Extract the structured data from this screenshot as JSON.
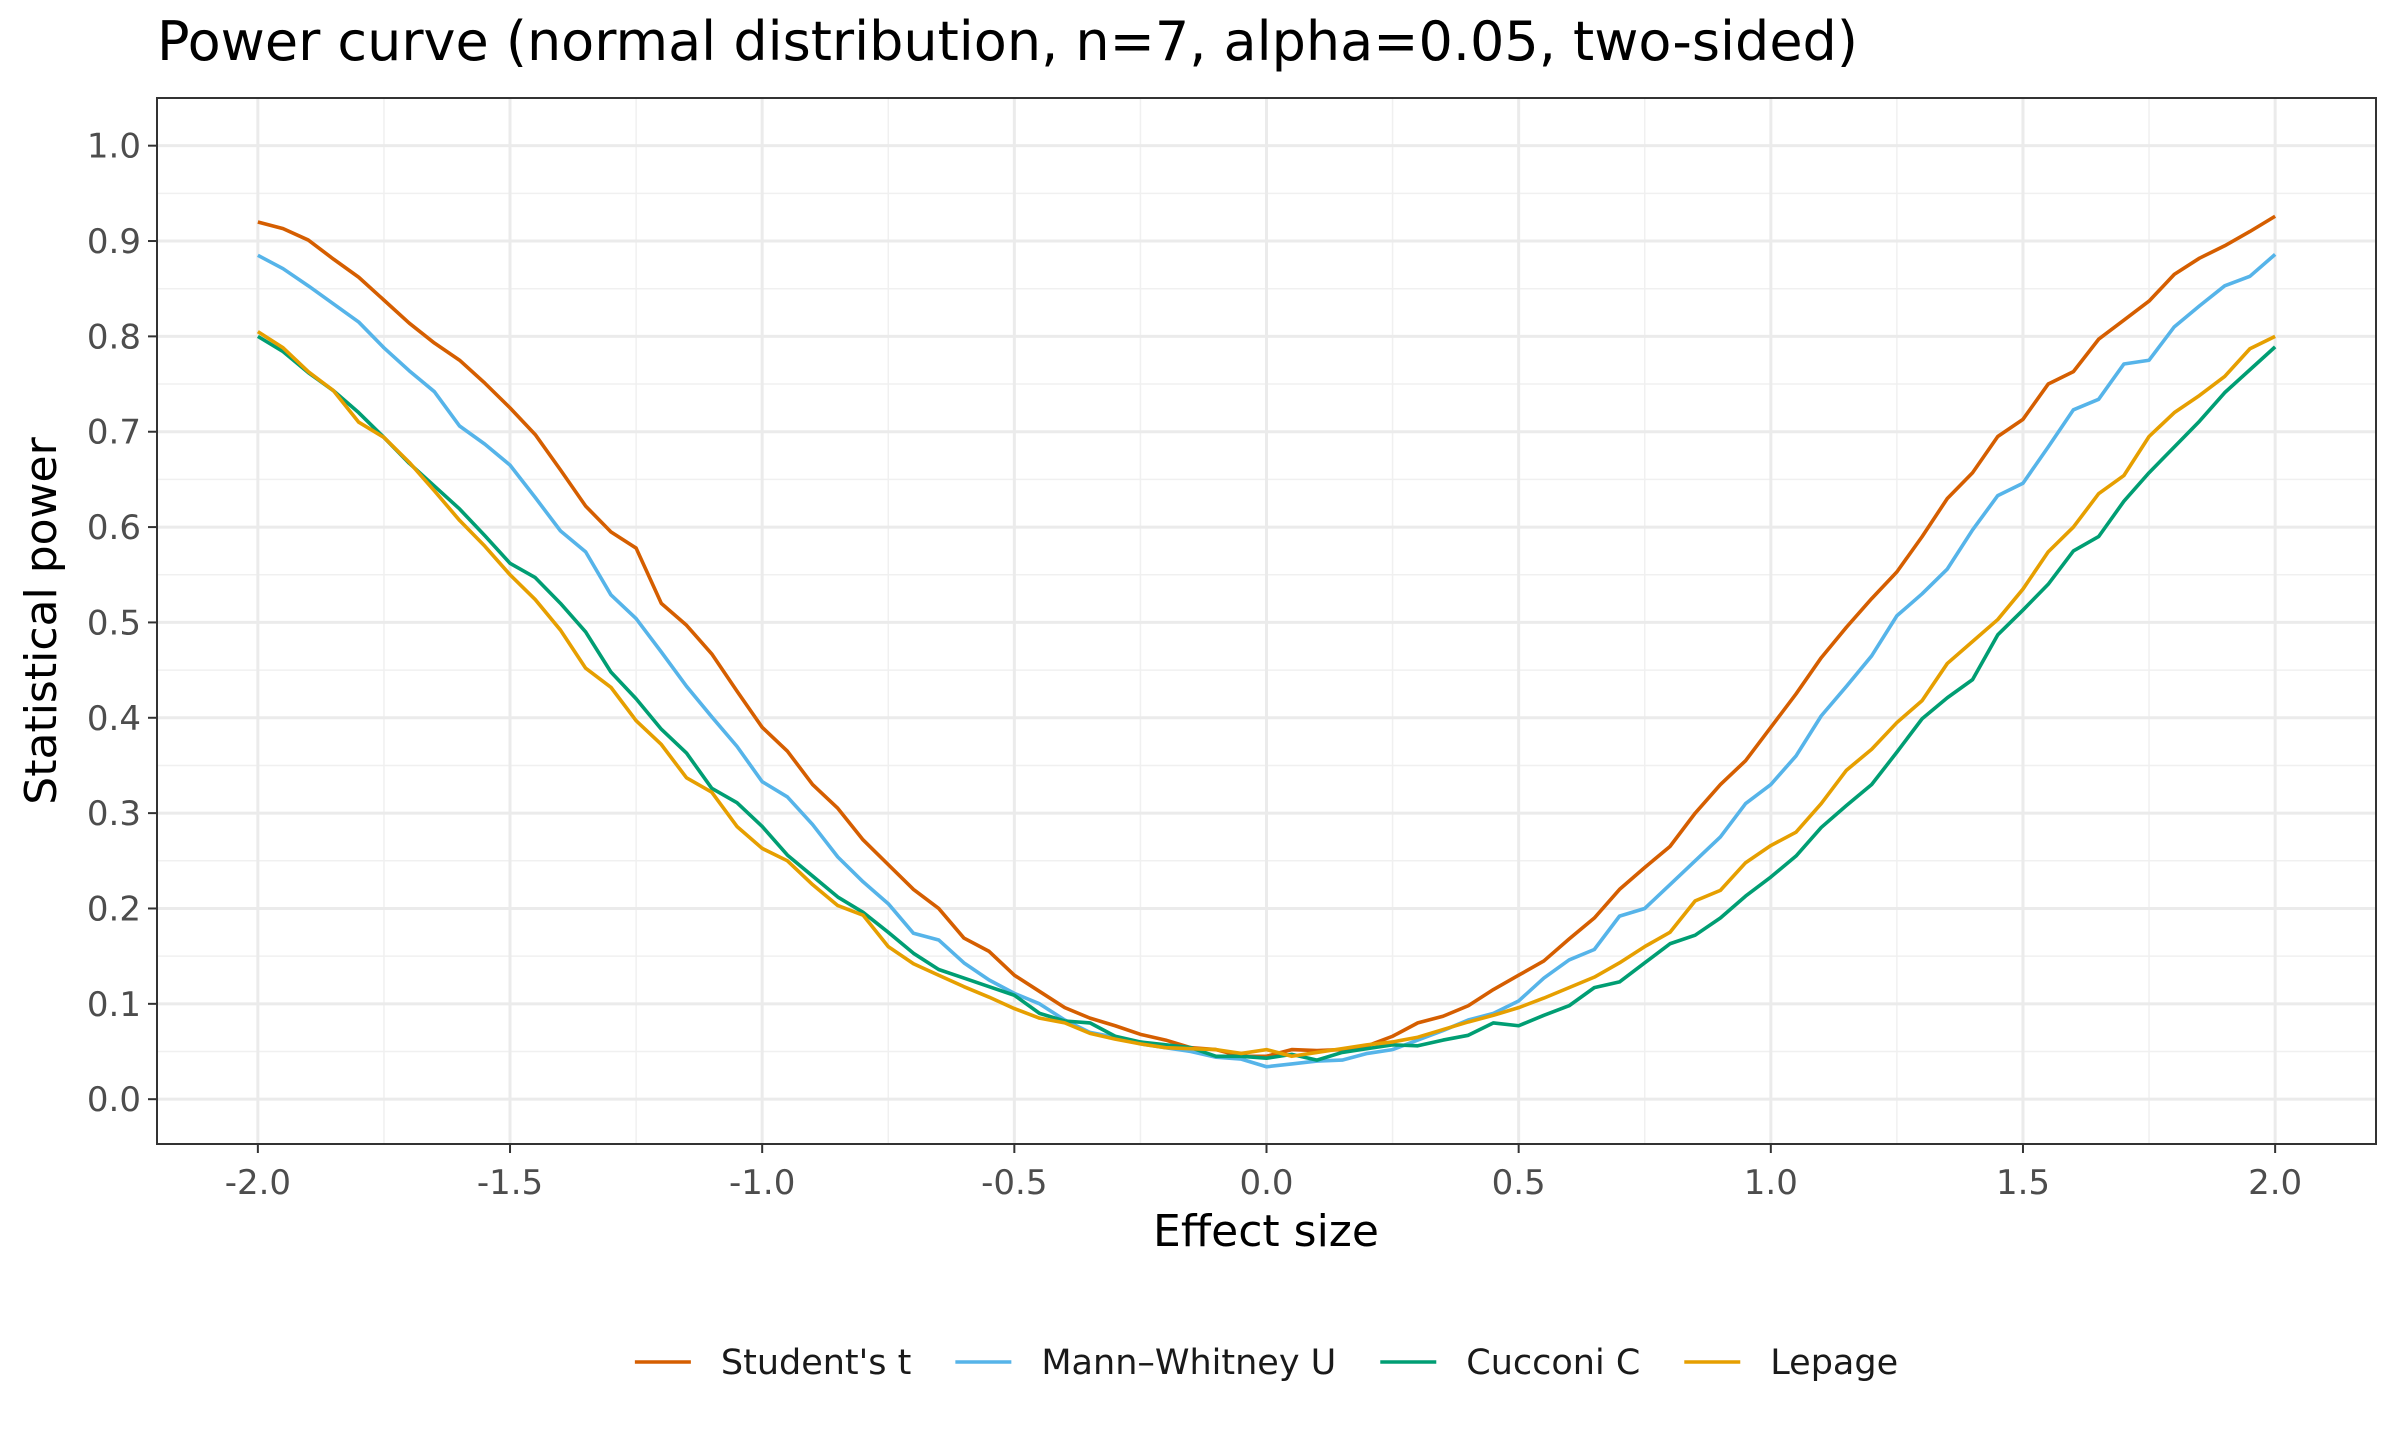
{
  "chart_data": {
    "type": "line",
    "title": "Power curve (normal distribution, n=7, alpha=0.05, two-sided)",
    "xlabel": "Effect size",
    "ylabel": "Statistical power",
    "xlim": [
      -2.2,
      2.2
    ],
    "ylim": [
      -0.047,
      1.05
    ],
    "x_ticks": [
      -2.0,
      -1.5,
      -1.0,
      -0.5,
      0.0,
      0.5,
      1.0,
      1.5,
      2.0
    ],
    "x_tick_labels": [
      "-2.0",
      "-1.5",
      "-1.0",
      "-0.5",
      "0.0",
      "0.5",
      "1.0",
      "1.5",
      "2.0"
    ],
    "y_ticks": [
      0.0,
      0.1,
      0.2,
      0.3,
      0.4,
      0.5,
      0.6,
      0.7,
      0.8,
      0.9,
      1.0
    ],
    "y_tick_labels": [
      "0.0",
      "0.1",
      "0.2",
      "0.3",
      "0.4",
      "0.5",
      "0.6",
      "0.7",
      "0.8",
      "0.9",
      "1.0"
    ],
    "grid": true,
    "legend_position": "bottom",
    "x": [
      -2.0,
      -1.95,
      -1.9,
      -1.85,
      -1.8,
      -1.75,
      -1.7,
      -1.65,
      -1.6,
      -1.55,
      -1.5,
      -1.45,
      -1.4,
      -1.35,
      -1.3,
      -1.25,
      -1.2,
      -1.15,
      -1.1,
      -1.05,
      -1.0,
      -0.95,
      -0.9,
      -0.85,
      -0.8,
      -0.75,
      -0.7,
      -0.65,
      -0.6,
      -0.55,
      -0.5,
      -0.45,
      -0.4,
      -0.35,
      -0.3,
      -0.25,
      -0.2,
      -0.15,
      -0.1,
      -0.05,
      0.0,
      0.05,
      0.1,
      0.15,
      0.2,
      0.25,
      0.3,
      0.35,
      0.4,
      0.45,
      0.5,
      0.55,
      0.6,
      0.65,
      0.7,
      0.75,
      0.8,
      0.85,
      0.9,
      0.95,
      1.0,
      1.05,
      1.1,
      1.15,
      1.2,
      1.25,
      1.3,
      1.35,
      1.4,
      1.45,
      1.5,
      1.55,
      1.6,
      1.65,
      1.7,
      1.75,
      1.8,
      1.85,
      1.9,
      1.95,
      2.0
    ],
    "series": [
      {
        "name": "Student's t",
        "color": "#D55E00",
        "values": [
          0.92,
          0.913,
          0.901,
          0.881,
          0.862,
          0.838,
          0.814,
          0.793,
          0.775,
          0.751,
          0.725,
          0.697,
          0.66,
          0.622,
          0.595,
          0.578,
          0.52,
          0.497,
          0.467,
          0.428,
          0.39,
          0.365,
          0.33,
          0.305,
          0.272,
          0.246,
          0.22,
          0.2,
          0.169,
          0.155,
          0.13,
          0.113,
          0.096,
          0.085,
          0.077,
          0.068,
          0.062,
          0.054,
          0.052,
          0.045,
          0.045,
          0.052,
          0.051,
          0.052,
          0.056,
          0.066,
          0.08,
          0.087,
          0.098,
          0.115,
          0.13,
          0.145,
          0.168,
          0.19,
          0.22,
          0.243,
          0.265,
          0.3,
          0.33,
          0.355,
          0.39,
          0.425,
          0.463,
          0.495,
          0.525,
          0.553,
          0.59,
          0.63,
          0.657,
          0.695,
          0.713,
          0.75,
          0.763,
          0.797,
          0.817,
          0.837,
          0.865,
          0.882,
          0.895,
          0.91,
          0.926
        ]
      },
      {
        "name": "Mann–Whitney U",
        "color": "#56B4E9",
        "values": [
          0.885,
          0.871,
          0.853,
          0.834,
          0.815,
          0.788,
          0.764,
          0.742,
          0.706,
          0.687,
          0.665,
          0.631,
          0.596,
          0.574,
          0.529,
          0.504,
          0.469,
          0.433,
          0.401,
          0.37,
          0.333,
          0.317,
          0.288,
          0.254,
          0.228,
          0.205,
          0.174,
          0.167,
          0.143,
          0.125,
          0.111,
          0.1,
          0.083,
          0.07,
          0.065,
          0.058,
          0.054,
          0.05,
          0.044,
          0.042,
          0.034,
          0.037,
          0.04,
          0.041,
          0.048,
          0.052,
          0.062,
          0.072,
          0.083,
          0.09,
          0.103,
          0.127,
          0.146,
          0.157,
          0.192,
          0.2,
          0.225,
          0.25,
          0.275,
          0.31,
          0.33,
          0.36,
          0.402,
          0.433,
          0.465,
          0.507,
          0.53,
          0.556,
          0.597,
          0.633,
          0.646,
          0.684,
          0.723,
          0.734,
          0.771,
          0.775,
          0.81,
          0.832,
          0.853,
          0.863,
          0.886
        ]
      },
      {
        "name": "Cucconi C",
        "color": "#009E73",
        "values": [
          0.8,
          0.784,
          0.762,
          0.743,
          0.72,
          0.694,
          0.667,
          0.643,
          0.619,
          0.591,
          0.562,
          0.547,
          0.52,
          0.49,
          0.448,
          0.42,
          0.388,
          0.363,
          0.326,
          0.311,
          0.286,
          0.256,
          0.234,
          0.212,
          0.196,
          0.175,
          0.153,
          0.136,
          0.127,
          0.118,
          0.109,
          0.09,
          0.082,
          0.08,
          0.066,
          0.06,
          0.057,
          0.054,
          0.045,
          0.045,
          0.043,
          0.047,
          0.041,
          0.049,
          0.053,
          0.057,
          0.056,
          0.062,
          0.067,
          0.08,
          0.077,
          0.088,
          0.098,
          0.117,
          0.123,
          0.143,
          0.163,
          0.172,
          0.19,
          0.213,
          0.233,
          0.255,
          0.285,
          0.308,
          0.33,
          0.364,
          0.399,
          0.421,
          0.44,
          0.487,
          0.513,
          0.54,
          0.575,
          0.59,
          0.627,
          0.657,
          0.684,
          0.711,
          0.741,
          0.765,
          0.789
        ]
      },
      {
        "name": "Lepage",
        "color": "#E69F00",
        "values": [
          0.805,
          0.788,
          0.763,
          0.743,
          0.71,
          0.694,
          0.668,
          0.638,
          0.607,
          0.58,
          0.55,
          0.524,
          0.492,
          0.452,
          0.432,
          0.397,
          0.372,
          0.337,
          0.322,
          0.286,
          0.263,
          0.25,
          0.225,
          0.203,
          0.193,
          0.16,
          0.142,
          0.13,
          0.118,
          0.107,
          0.095,
          0.085,
          0.08,
          0.069,
          0.063,
          0.058,
          0.054,
          0.053,
          0.052,
          0.048,
          0.052,
          0.045,
          0.049,
          0.053,
          0.057,
          0.06,
          0.065,
          0.073,
          0.081,
          0.088,
          0.096,
          0.106,
          0.117,
          0.128,
          0.143,
          0.16,
          0.175,
          0.208,
          0.219,
          0.248,
          0.266,
          0.28,
          0.31,
          0.345,
          0.367,
          0.395,
          0.418,
          0.457,
          0.48,
          0.503,
          0.535,
          0.574,
          0.6,
          0.635,
          0.654,
          0.695,
          0.72,
          0.738,
          0.758,
          0.787,
          0.8
        ]
      }
    ]
  }
}
